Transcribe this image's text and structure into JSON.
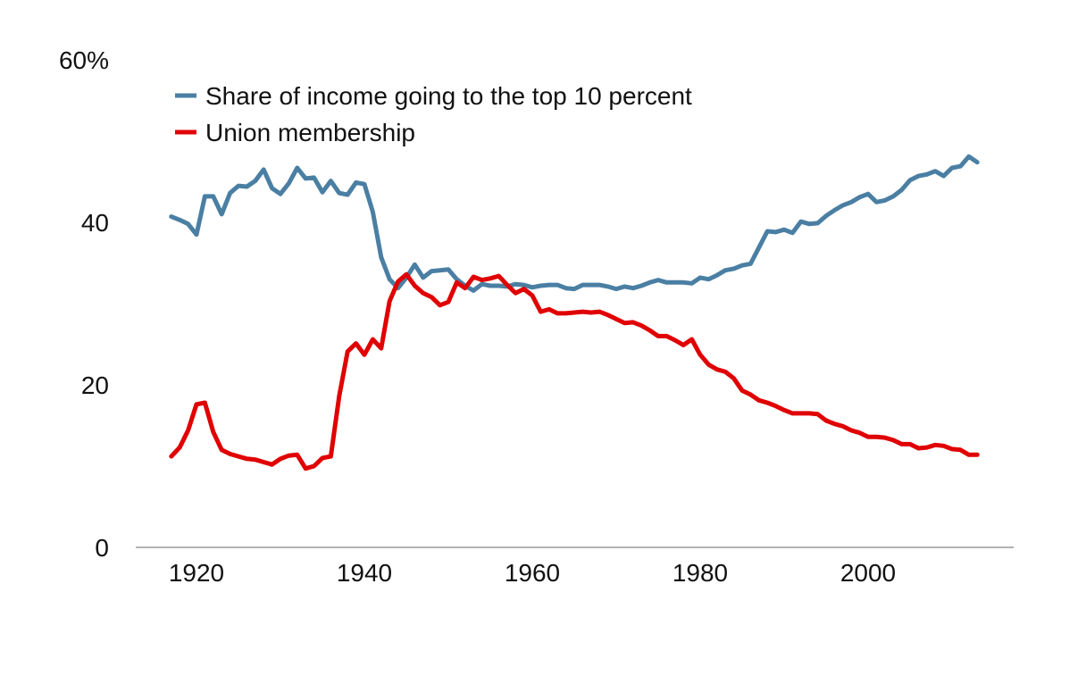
{
  "chart_data": {
    "type": "line",
    "title": "",
    "xlabel": "",
    "ylabel": "",
    "xlim": [
      1912,
      2018
    ],
    "ylim": [
      0,
      60
    ],
    "grid": false,
    "legend_placement": "top-left",
    "x_ticks": [
      1920,
      1940,
      1960,
      1980,
      2000
    ],
    "x_tick_labels": [
      "1920",
      "1940",
      "1960",
      "1980",
      "2000"
    ],
    "y_ticks": [
      0,
      20,
      40,
      60
    ],
    "y_tick_labels": [
      "0",
      "20",
      "40",
      "60%"
    ],
    "x": [
      1917,
      1918,
      1919,
      1920,
      1921,
      1922,
      1923,
      1924,
      1925,
      1926,
      1927,
      1928,
      1929,
      1930,
      1931,
      1932,
      1933,
      1934,
      1935,
      1936,
      1937,
      1938,
      1939,
      1940,
      1941,
      1942,
      1943,
      1944,
      1945,
      1946,
      1947,
      1948,
      1949,
      1950,
      1951,
      1952,
      1953,
      1954,
      1955,
      1956,
      1957,
      1958,
      1959,
      1960,
      1961,
      1962,
      1963,
      1964,
      1965,
      1966,
      1967,
      1968,
      1969,
      1970,
      1971,
      1972,
      1973,
      1974,
      1975,
      1976,
      1977,
      1978,
      1979,
      1980,
      1981,
      1982,
      1983,
      1984,
      1985,
      1986,
      1987,
      1988,
      1989,
      1990,
      1991,
      1992,
      1993,
      1994,
      1995,
      1996,
      1997,
      1998,
      1999,
      2000,
      2001,
      2002,
      2003,
      2004,
      2005,
      2006,
      2007,
      2008,
      2009,
      2010,
      2011,
      2012,
      2013
    ],
    "series": [
      {
        "name": "Share of income going to the top 10 percent",
        "color": "#4a7fa3",
        "values": [
          40.7,
          40.3,
          39.8,
          38.5,
          43.2,
          43.2,
          41.0,
          43.6,
          44.5,
          44.4,
          45.1,
          46.5,
          44.2,
          43.5,
          44.8,
          46.7,
          45.4,
          45.5,
          43.7,
          45.1,
          43.6,
          43.4,
          44.9,
          44.7,
          41.3,
          35.7,
          33.0,
          31.9,
          33.2,
          34.8,
          33.2,
          34.0,
          34.1,
          34.2,
          33.0,
          32.2,
          31.6,
          32.4,
          32.2,
          32.2,
          32.1,
          32.4,
          32.3,
          32.0,
          32.2,
          32.3,
          32.3,
          31.9,
          31.8,
          32.3,
          32.3,
          32.3,
          32.1,
          31.8,
          32.1,
          31.9,
          32.2,
          32.6,
          32.9,
          32.6,
          32.6,
          32.6,
          32.5,
          33.2,
          33.0,
          33.5,
          34.1,
          34.3,
          34.7,
          34.9,
          36.9,
          38.9,
          38.8,
          39.1,
          38.7,
          40.1,
          39.8,
          39.9,
          40.8,
          41.5,
          42.1,
          42.5,
          43.1,
          43.5,
          42.5,
          42.7,
          43.2,
          44.0,
          45.2,
          45.7,
          45.9,
          46.3,
          45.7,
          46.7,
          46.9,
          48.1,
          47.4
        ]
      },
      {
        "name": "Union membership",
        "color": "#e00000",
        "values": [
          11.2,
          12.3,
          14.4,
          17.6,
          17.8,
          14.2,
          12.0,
          11.5,
          11.2,
          10.9,
          10.8,
          10.5,
          10.2,
          10.9,
          11.3,
          11.4,
          9.7,
          10.0,
          11.0,
          11.2,
          18.6,
          24.1,
          25.1,
          23.7,
          25.6,
          24.5,
          30.3,
          32.7,
          33.6,
          32.2,
          31.3,
          30.8,
          29.8,
          30.2,
          32.6,
          31.9,
          33.3,
          32.9,
          33.1,
          33.4,
          32.3,
          31.3,
          31.8,
          31.0,
          29.0,
          29.3,
          28.8,
          28.8,
          28.9,
          29.0,
          28.9,
          29.0,
          28.6,
          28.1,
          27.6,
          27.7,
          27.3,
          26.7,
          26.0,
          26.0,
          25.5,
          24.9,
          25.6,
          23.7,
          22.5,
          21.9,
          21.6,
          20.8,
          19.3,
          18.8,
          18.1,
          17.8,
          17.4,
          16.9,
          16.5,
          16.5,
          16.5,
          16.4,
          15.6,
          15.2,
          14.9,
          14.4,
          14.1,
          13.6,
          13.6,
          13.5,
          13.2,
          12.7,
          12.7,
          12.2,
          12.3,
          12.6,
          12.5,
          12.1,
          12.0,
          11.4,
          11.4
        ]
      }
    ]
  }
}
